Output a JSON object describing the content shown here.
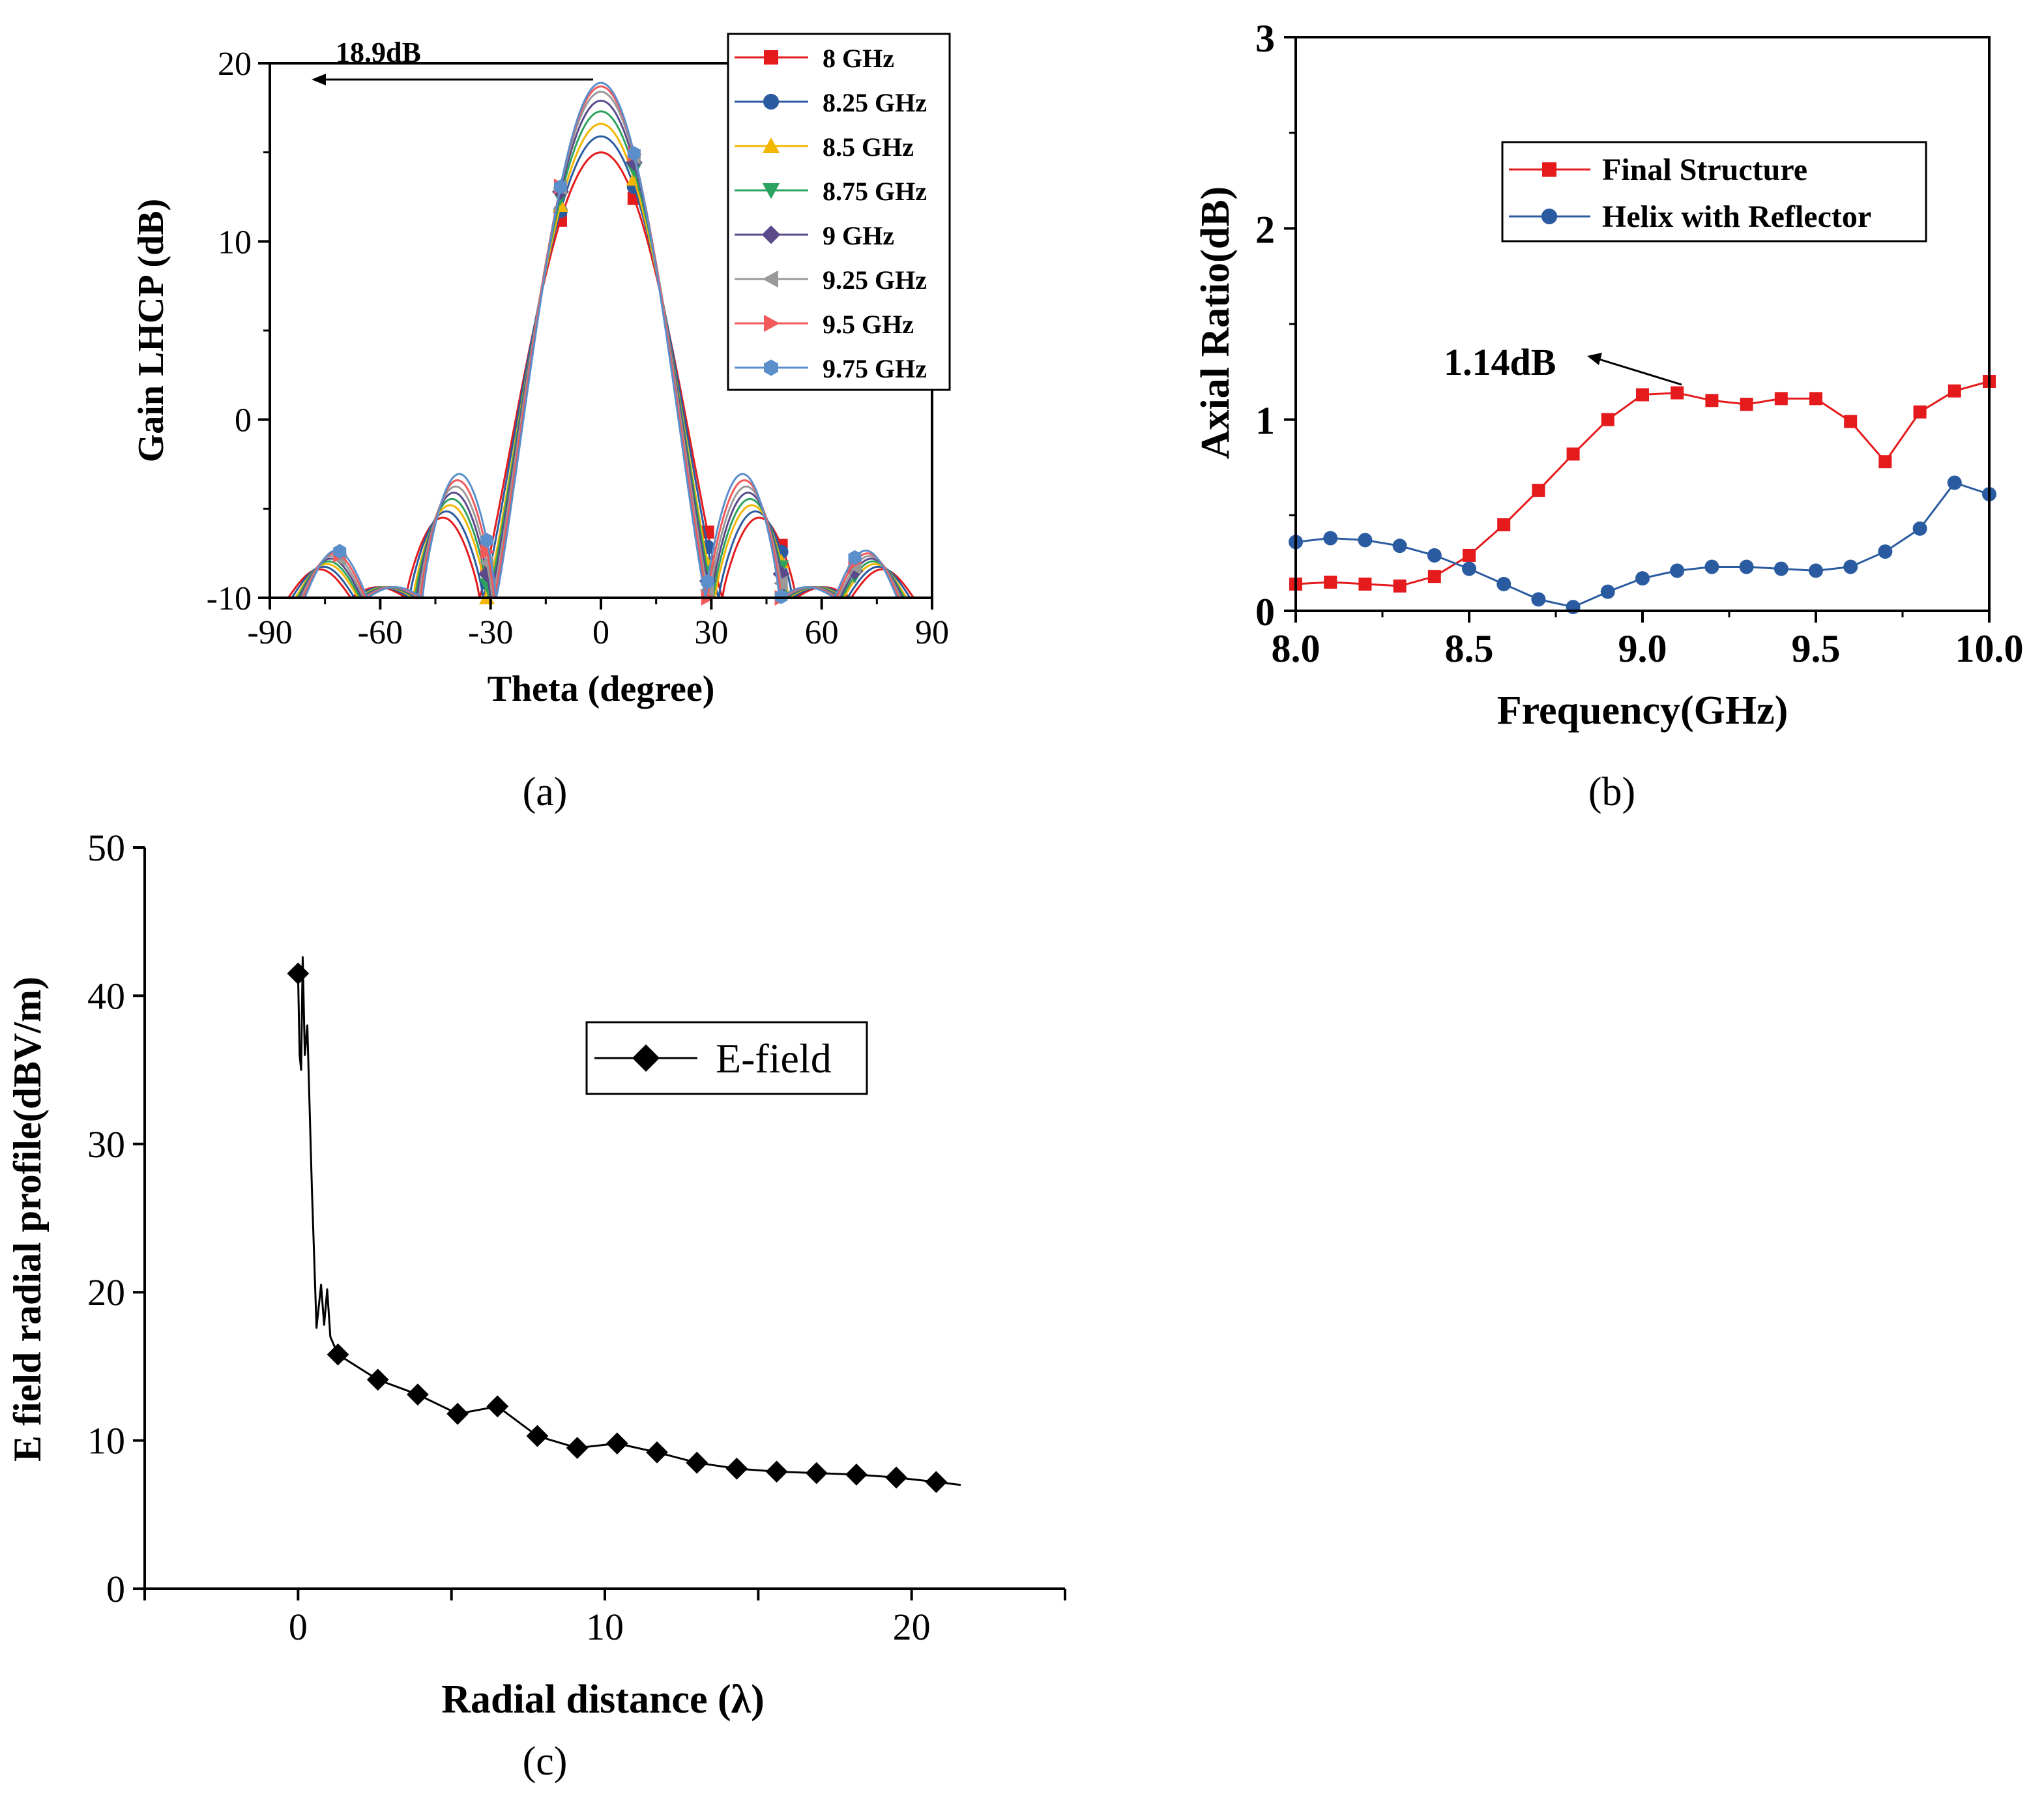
{
  "chart_data": [
    {
      "type": "line",
      "caption": "(a)",
      "xlabel": "Theta (degree)",
      "ylabel": "Gain LHCP (dB)",
      "xlim": [
        -90,
        90
      ],
      "ylim": [
        -10,
        20
      ],
      "xticks": [
        "-90",
        "-60",
        "-30",
        "0",
        "30",
        "60",
        "90"
      ],
      "yticks": [
        "-10",
        "0",
        "10",
        "20"
      ],
      "annotation": "18.9dB",
      "series": [
        {
          "name": "8 GHz",
          "color": "#e41a1c",
          "marker": "square",
          "peak": 15.0,
          "hw": 33,
          "mx": [
            -31,
            -11,
            9,
            29,
            49
          ]
        },
        {
          "name": "8.25 GHz",
          "color": "#2a5ba0",
          "marker": "circle",
          "peak": 15.9,
          "hw": 32,
          "mx": [
            -31,
            -11,
            9,
            29,
            49
          ]
        },
        {
          "name": "8.5 GHz",
          "color": "#f2b705",
          "marker": "triangle",
          "peak": 16.6,
          "hw": 31,
          "mx": [
            -31,
            -11,
            9,
            29,
            49
          ]
        },
        {
          "name": "8.75 GHz",
          "color": "#2ca25f",
          "marker": "triangle-down",
          "peak": 17.3,
          "hw": 30.5,
          "mx": [
            -31,
            -11,
            9,
            29,
            49,
            69
          ]
        },
        {
          "name": "9 GHz",
          "color": "#5a4a8a",
          "marker": "diamond",
          "peak": 17.9,
          "hw": 30,
          "mx": [
            -31,
            -11,
            9,
            29,
            49,
            69
          ]
        },
        {
          "name": "9.25 GHz",
          "color": "#999999",
          "marker": "triangle-left",
          "peak": 18.4,
          "hw": 29.5,
          "mx": [
            -71,
            -31,
            -11,
            9,
            29,
            49,
            69
          ]
        },
        {
          "name": "9.5 GHz",
          "color": "#f05a5a",
          "marker": "triangle-right",
          "peak": 18.7,
          "hw": 29,
          "mx": [
            -71,
            -31,
            -11,
            9,
            29,
            49,
            69
          ]
        },
        {
          "name": "9.75 GHz",
          "color": "#5b8fcc",
          "marker": "hexagon",
          "peak": 18.9,
          "hw": 28.5,
          "mx": [
            -71,
            -31,
            -11,
            9,
            29,
            49,
            69
          ]
        }
      ]
    },
    {
      "type": "line",
      "caption": "(b)",
      "xlabel": "Frequency(GHz)",
      "ylabel": "Axial Ratio(dB)",
      "xlim": [
        8.0,
        10.0
      ],
      "ylim": [
        0,
        3
      ],
      "xticks": [
        "8.0",
        "8.5",
        "9.0",
        "9.5",
        "10.0"
      ],
      "yticks": [
        "0",
        "1",
        "2",
        "3"
      ],
      "annotation": "1.14dB",
      "x": [
        8.0,
        8.1,
        8.2,
        8.3,
        8.4,
        8.5,
        8.6,
        8.7,
        8.8,
        8.9,
        9.0,
        9.1,
        9.2,
        9.3,
        9.4,
        9.5,
        9.6,
        9.7,
        9.8,
        9.9,
        10.0
      ],
      "series": [
        {
          "name": "Final Structure",
          "color": "#e41a1c",
          "marker": "square",
          "values": [
            0.14,
            0.15,
            0.14,
            0.13,
            0.18,
            0.29,
            0.45,
            0.63,
            0.82,
            1.0,
            1.13,
            1.14,
            1.1,
            1.08,
            1.11,
            1.11,
            0.99,
            0.78,
            1.04,
            1.15,
            1.2
          ]
        },
        {
          "name": "Helix with Reflector",
          "color": "#2a5ba0",
          "marker": "circle",
          "values": [
            0.36,
            0.38,
            0.37,
            0.34,
            0.29,
            0.22,
            0.14,
            0.06,
            0.02,
            0.1,
            0.17,
            0.21,
            0.23,
            0.23,
            0.22,
            0.21,
            0.23,
            0.31,
            0.43,
            0.67,
            0.61
          ]
        }
      ]
    },
    {
      "type": "line",
      "caption": "(c)",
      "xlabel": "Radial distance (λ)",
      "ylabel": "E field radial profile(dBV/m)",
      "xlim": [
        -5,
        25
      ],
      "ylim": [
        0,
        50
      ],
      "xticks": [
        "0",
        "10",
        "20"
      ],
      "yticks": [
        "0",
        "10",
        "20",
        "30",
        "40",
        "50"
      ],
      "series": [
        {
          "name": "E-field",
          "color": "#000000",
          "marker": "diamond",
          "x": [
            0.0,
            1.3,
            2.6,
            3.9,
            5.2,
            6.5,
            7.8,
            9.1,
            10.4,
            11.7,
            13.0,
            14.3,
            15.6,
            16.9,
            18.2,
            19.5,
            20.8
          ],
          "values": [
            41.5,
            15.8,
            14.1,
            13.1,
            11.8,
            12.3,
            10.3,
            9.5,
            9.8,
            9.2,
            8.5,
            8.1,
            7.9,
            7.8,
            7.7,
            7.5,
            7.2
          ]
        }
      ]
    }
  ]
}
